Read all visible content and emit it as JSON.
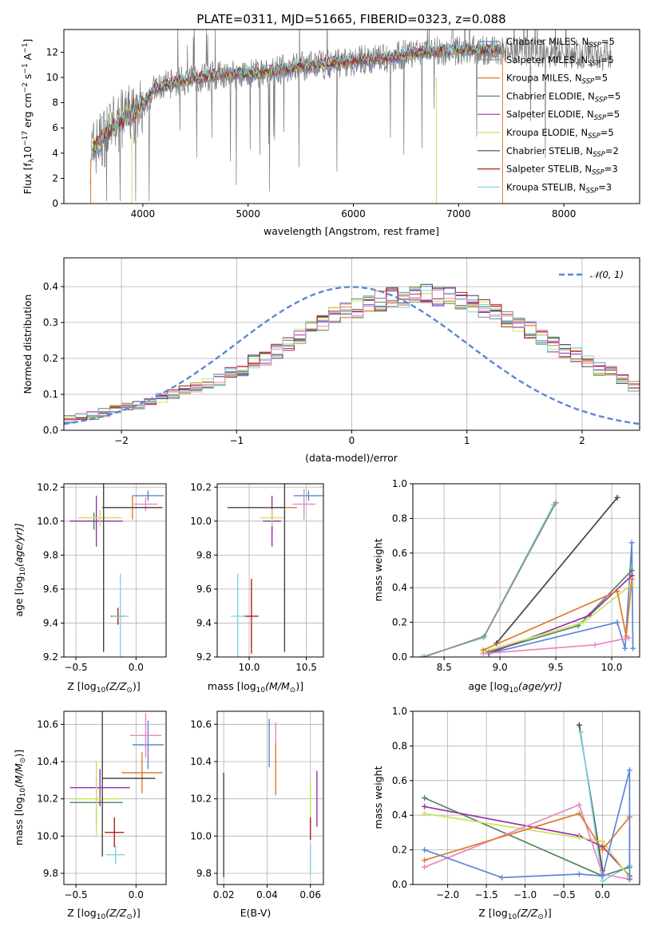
{
  "figure_title": "PLATE=0311, MJD=51665, FIBERID=0323, z=0.088",
  "colors": {
    "chabrier_miles": "#5b87d6",
    "salpeter_miles": "#8c8c8c",
    "kroupa_miles": "#e07b2a",
    "chabrier_elodie": "#4f8a5c",
    "salpeter_elodie": "#9b2fae",
    "kroupa_elodie": "#c8e65a",
    "chabrier_stelib": "#444444",
    "salpeter_stelib": "#b21e1e",
    "kroupa_stelib": "#7fd6e0",
    "pink": "#e887c2"
  },
  "chart_data": [
    {
      "id": "spectrum",
      "type": "line",
      "xlabel": "wavelength [Angstrom, rest frame]",
      "ylabel_main": "Flux [f",
      "ylabel_sub1": "λ",
      "ylabel_mid": "10",
      "ylabel_sup1": "−17",
      "ylabel_tail": " erg cm",
      "ylabel_sup2": "−2",
      "ylabel_tail2": " s",
      "ylabel_sup3": "−1",
      "ylabel_tail3": " A",
      "ylabel_sup4": "−1",
      "ylabel_close": "]",
      "xlim": [
        3250,
        8720
      ],
      "ylim": [
        0,
        13.8
      ],
      "xticks": [
        "4000",
        "5000",
        "6000",
        "7000",
        "8000"
      ],
      "yticks": [
        "0",
        "2",
        "4",
        "6",
        "8",
        "10",
        "12"
      ],
      "legend": [
        {
          "main": "Chabrier MILES, N",
          "sub": "SSP",
          "tail": "=5",
          "color": "#5b87d6"
        },
        {
          "main": "Salpeter MILES, N",
          "sub": "SSP",
          "tail": "=5",
          "color": "#8c8c8c"
        },
        {
          "main": "Kroupa MILES, N",
          "sub": "SSP",
          "tail": "=5",
          "color": "#e07b2a"
        },
        {
          "main": "Chabrier ELODIE, N",
          "sub": "SSP",
          "tail": "=5",
          "color": "#4f8a5c"
        },
        {
          "main": "Salpeter ELODIE, N",
          "sub": "SSP",
          "tail": "=5",
          "color": "#9b2fae"
        },
        {
          "main": "Kroupa ELODIE, N",
          "sub": "SSP",
          "tail": "=5",
          "color": "#c8e65a"
        },
        {
          "main": "Chabrier STELIB, N",
          "sub": "SSP",
          "tail": "=2",
          "color": "#444444"
        },
        {
          "main": "Salpeter STELIB, N",
          "sub": "SSP",
          "tail": "=3",
          "color": "#b21e1e"
        },
        {
          "main": "Kroupa STELIB, N",
          "sub": "SSP",
          "tail": "=3",
          "color": "#7fd6e0"
        }
      ],
      "continuum": [
        [
          3500,
          4.0
        ],
        [
          3700,
          6.0
        ],
        [
          3900,
          7.2
        ],
        [
          4000,
          7.8
        ],
        [
          4100,
          9.0
        ],
        [
          4300,
          9.6
        ],
        [
          4500,
          9.9
        ],
        [
          4700,
          10.2
        ],
        [
          4900,
          10.3
        ],
        [
          5100,
          10.3
        ],
        [
          5300,
          10.6
        ],
        [
          5500,
          10.9
        ],
        [
          5700,
          11.0
        ],
        [
          5900,
          11.2
        ],
        [
          6100,
          11.4
        ],
        [
          6300,
          11.5
        ],
        [
          6500,
          11.8
        ],
        [
          6700,
          12.0
        ],
        [
          6900,
          12.1
        ],
        [
          7100,
          12.2
        ],
        [
          7300,
          12.1
        ],
        [
          7420,
          12.2
        ]
      ]
    },
    {
      "id": "residuals",
      "type": "histogram",
      "xlabel": "(data-model)/error",
      "ylabel": "Normed distribution",
      "xlim": [
        -2.5,
        2.5
      ],
      "ylim": [
        0,
        0.48
      ],
      "xticks": [
        "−2",
        "−1",
        "0",
        "1",
        "2"
      ],
      "yticks": [
        "0.0",
        "0.1",
        "0.2",
        "0.3",
        "0.4"
      ],
      "legend_label": "𝒩(0, 1)",
      "bin_width": 0.1,
      "base_values": [
        0.03,
        0.04,
        0.04,
        0.05,
        0.06,
        0.07,
        0.07,
        0.08,
        0.09,
        0.1,
        0.11,
        0.12,
        0.13,
        0.14,
        0.16,
        0.17,
        0.19,
        0.2,
        0.22,
        0.24,
        0.26,
        0.28,
        0.3,
        0.32,
        0.33,
        0.34,
        0.35,
        0.36,
        0.37,
        0.37,
        0.38,
        0.38,
        0.37,
        0.37,
        0.36,
        0.35,
        0.34,
        0.33,
        0.31,
        0.3,
        0.28,
        0.26,
        0.24,
        0.22,
        0.21,
        0.19,
        0.17,
        0.16,
        0.14,
        0.12
      ]
    },
    {
      "id": "age_vs_Z",
      "type": "errorbar",
      "xlabel_pre": "Z [log",
      "xlabel_sub": "10",
      "xlabel_post": "(Z/Z",
      "xlabel_sub2": "⊙",
      "xlabel_end": ")]",
      "ylabel_pre": "age  [log",
      "ylabel_sub": "10",
      "ylabel_post": "(age/yr)]",
      "xlim": [
        -0.6,
        0.25
      ],
      "ylim": [
        9.2,
        10.22
      ],
      "xticks": [
        "−0.5",
        "0.0"
      ],
      "xtickvals": [
        -0.5,
        0.0
      ],
      "yticks": [
        "9.2",
        "9.4",
        "9.6",
        "9.8",
        "10.0",
        "10.2"
      ],
      "ytickvals": [
        9.2,
        9.4,
        9.6,
        9.8,
        10.0,
        10.2
      ],
      "points": [
        {
          "x": 0.1,
          "y": 10.15,
          "xe": 0.13,
          "ye": 0.03,
          "c": "#5b87d6"
        },
        {
          "x": 0.08,
          "y": 10.1,
          "xe": 0.1,
          "ye": 0.04,
          "c": "#e887c2"
        },
        {
          "x": -0.03,
          "y": 10.08,
          "xe": 0.25,
          "ye": 0.07,
          "c": "#e07b2a"
        },
        {
          "x": -0.35,
          "y": 10.0,
          "xe": 0.2,
          "ye": 0.05,
          "c": "#4f8a5c"
        },
        {
          "x": -0.33,
          "y": 10.0,
          "xe": 0.22,
          "ye": 0.15,
          "c": "#9b2fae"
        },
        {
          "x": -0.3,
          "y": 10.02,
          "xe": 0.18,
          "ye": 0.05,
          "c": "#c8e65a"
        },
        {
          "x": -0.03,
          "y": 10.08,
          "xe": 0.25,
          "ye": 0.0,
          "c": "#444444"
        },
        {
          "x": -0.27,
          "y": 10.08,
          "xe": 0.0,
          "ye": 0.85,
          "c": "#444444"
        },
        {
          "x": -0.15,
          "y": 9.44,
          "xe": 0.06,
          "ye": 0.05,
          "c": "#b21e1e"
        },
        {
          "x": -0.13,
          "y": 9.44,
          "xe": 0.07,
          "ye": 0.25,
          "c": "#7fd6e0"
        }
      ]
    },
    {
      "id": "age_vs_mass",
      "type": "errorbar",
      "xlabel_pre": "mass [log",
      "xlabel_sub": "10",
      "xlabel_post": "(M/M",
      "xlabel_sub2": "⊙",
      "xlabel_end": ")]",
      "xlim": [
        9.72,
        10.65
      ],
      "ylim": [
        9.2,
        10.22
      ],
      "xticks": [
        "10.0",
        "10.5"
      ],
      "xtickvals": [
        10.0,
        10.5
      ],
      "yticks": [
        "9.2",
        "9.4",
        "9.6",
        "9.8",
        "10.0",
        "10.2"
      ],
      "ytickvals": [
        9.2,
        9.4,
        9.6,
        9.8,
        10.0,
        10.2
      ],
      "points": [
        {
          "x": 10.52,
          "y": 10.15,
          "xe": 0.13,
          "ye": 0.03,
          "c": "#5b87d6"
        },
        {
          "x": 10.48,
          "y": 10.1,
          "xe": 0.1,
          "ye": 0.09,
          "c": "#e887c2"
        },
        {
          "x": 10.32,
          "y": 10.08,
          "xe": 0.1,
          "ye": 0.0,
          "c": "#e07b2a"
        },
        {
          "x": 10.2,
          "y": 10.0,
          "xe": 0.06,
          "ye": 0.06,
          "c": "#4f8a5c"
        },
        {
          "x": 10.2,
          "y": 10.0,
          "xe": 0.08,
          "ye": 0.15,
          "c": "#9b2fae"
        },
        {
          "x": 10.2,
          "y": 10.02,
          "xe": 0.1,
          "ye": 0.05,
          "c": "#c8e65a"
        },
        {
          "x": 10.06,
          "y": 10.08,
          "xe": 0.25,
          "ye": 0.0,
          "c": "#444444"
        },
        {
          "x": 10.31,
          "y": 10.08,
          "xe": 0.0,
          "ye": 0.85,
          "c": "#444444"
        },
        {
          "x": 10.02,
          "y": 9.44,
          "xe": 0.06,
          "ye": 0.22,
          "c": "#b21e1e"
        },
        {
          "x": 9.9,
          "y": 9.44,
          "xe": 0.06,
          "ye": 0.25,
          "c": "#7fd6e0"
        }
      ]
    },
    {
      "id": "mass_weight_vs_age",
      "type": "line",
      "xlabel_pre": "age  [log",
      "xlabel_sub": "10",
      "xlabel_post": "(age/yr)]",
      "ylabel": "mass weight",
      "xlim": [
        8.22,
        10.25
      ],
      "ylim": [
        0,
        1.0
      ],
      "xticks": [
        "8.5",
        "9.0",
        "9.5",
        "10.0"
      ],
      "xtickvals": [
        8.5,
        9.0,
        9.5,
        10.0
      ],
      "yticks": [
        "0.0",
        "0.2",
        "0.4",
        "0.6",
        "0.8",
        "1.0"
      ],
      "ytickvals": [
        0,
        0.2,
        0.4,
        0.6,
        0.8,
        1.0
      ],
      "series": [
        {
          "c": "#7fd6e0",
          "pts": [
            [
              8.3,
              0.0
            ],
            [
              8.85,
              0.11
            ],
            [
              9.48,
              0.88
            ]
          ]
        },
        {
          "c": "#8c8c8c",
          "pts": [
            [
              8.32,
              0.0
            ],
            [
              8.86,
              0.12
            ],
            [
              9.5,
              0.89
            ]
          ]
        },
        {
          "c": "#444444",
          "pts": [
            [
              8.97,
              0.08
            ],
            [
              10.05,
              0.92
            ]
          ]
        },
        {
          "c": "#5b87d6",
          "pts": [
            [
              8.9,
              0.02
            ],
            [
              10.05,
              0.2
            ],
            [
              10.12,
              0.05
            ],
            [
              10.18,
              0.66
            ],
            [
              10.19,
              0.05
            ]
          ]
        },
        {
          "c": "#4f8a5c",
          "pts": [
            [
              8.9,
              0.03
            ],
            [
              9.7,
              0.18
            ],
            [
              10.18,
              0.5
            ]
          ]
        },
        {
          "c": "#9b2fae",
          "pts": [
            [
              8.9,
              0.02
            ],
            [
              9.8,
              0.24
            ],
            [
              10.18,
              0.47
            ]
          ]
        },
        {
          "c": "#c8e65a",
          "pts": [
            [
              8.85,
              0.03
            ],
            [
              9.75,
              0.2
            ],
            [
              10.18,
              0.42
            ]
          ]
        },
        {
          "c": "#e07b2a",
          "pts": [
            [
              8.85,
              0.04
            ],
            [
              10.05,
              0.38
            ],
            [
              10.13,
              0.12
            ],
            [
              10.18,
              0.45
            ]
          ]
        },
        {
          "c": "#e887c2",
          "pts": [
            [
              8.85,
              0.02
            ],
            [
              9.85,
              0.07
            ],
            [
              10.15,
              0.11
            ]
          ]
        }
      ]
    },
    {
      "id": "mass_vs_Z",
      "type": "errorbar",
      "xlabel_pre": "Z [log",
      "xlabel_sub": "10",
      "xlabel_post": "(Z/Z",
      "xlabel_sub2": "⊙",
      "xlabel_end": ")]",
      "ylabel_pre": "mass [log",
      "ylabel_sub": "10",
      "ylabel_post": "(M/M",
      "ylabel_sub2": "⊙",
      "ylabel_end": ")]",
      "xlim": [
        -0.6,
        0.25
      ],
      "ylim": [
        9.74,
        10.67
      ],
      "xticks": [
        "−0.5",
        "0.0"
      ],
      "xtickvals": [
        -0.5,
        0.0
      ],
      "yticks": [
        "9.8",
        "10.0",
        "10.2",
        "10.4",
        "10.6"
      ],
      "ytickvals": [
        9.8,
        10.0,
        10.2,
        10.4,
        10.6
      ],
      "points": [
        {
          "x": 0.1,
          "y": 10.49,
          "xe": 0.13,
          "ye": 0.13,
          "c": "#5b87d6"
        },
        {
          "x": 0.08,
          "y": 10.54,
          "xe": 0.13,
          "ye": 0.12,
          "c": "#e887c2"
        },
        {
          "x": 0.05,
          "y": 10.34,
          "xe": 0.17,
          "ye": 0.11,
          "c": "#e07b2a"
        },
        {
          "x": -0.33,
          "y": 10.18,
          "xe": 0.22,
          "ye": 0.13,
          "c": "#4f8a5c"
        },
        {
          "x": -0.3,
          "y": 10.26,
          "xe": 0.25,
          "ye": 0.1,
          "c": "#9b2fae"
        },
        {
          "x": -0.33,
          "y": 10.2,
          "xe": 0.2,
          "ye": 0.2,
          "c": "#c8e65a"
        },
        {
          "x": -0.06,
          "y": 10.31,
          "xe": 0.22,
          "ye": 0.0,
          "c": "#444444"
        },
        {
          "x": -0.28,
          "y": 10.31,
          "xe": 0.0,
          "ye": 0.42,
          "c": "#444444"
        },
        {
          "x": -0.18,
          "y": 10.02,
          "xe": 0.08,
          "ye": 0.08,
          "c": "#b21e1e"
        },
        {
          "x": -0.17,
          "y": 9.9,
          "xe": 0.08,
          "ye": 0.05,
          "c": "#7fd6e0"
        }
      ]
    },
    {
      "id": "mass_vs_ebv",
      "type": "errorbar",
      "xlabel": "E(B-V)",
      "xlim": [
        0.017,
        0.066
      ],
      "ylim": [
        9.74,
        10.67
      ],
      "xticks": [
        "0.02",
        "0.04",
        "0.06"
      ],
      "xtickvals": [
        0.02,
        0.04,
        0.06
      ],
      "yticks": [
        "9.8",
        "10.0",
        "10.2",
        "10.4",
        "10.6"
      ],
      "ytickvals": [
        9.8,
        10.0,
        10.2,
        10.4,
        10.6
      ],
      "points": [
        {
          "x": 0.041,
          "y": 10.5,
          "xe": 0,
          "ye": 0.13,
          "c": "#5b87d6"
        },
        {
          "x": 0.044,
          "y": 10.5,
          "xe": 0,
          "ye": 0.11,
          "c": "#e887c2"
        },
        {
          "x": 0.044,
          "y": 10.36,
          "xe": 0,
          "ye": 0.14,
          "c": "#e07b2a"
        },
        {
          "x": 0.06,
          "y": 10.17,
          "xe": 0,
          "ye": 0.13,
          "c": "#c8e65a"
        },
        {
          "x": 0.063,
          "y": 10.2,
          "xe": 0,
          "ye": 0.15,
          "c": "#9b2fae"
        },
        {
          "x": 0.02,
          "y": 10.06,
          "xe": 0,
          "ye": 0.28,
          "c": "#444444"
        },
        {
          "x": 0.06,
          "y": 10.04,
          "xe": 0,
          "ye": 0.06,
          "c": "#b21e1e"
        },
        {
          "x": 0.06,
          "y": 9.88,
          "xe": 0,
          "ye": 0.08,
          "c": "#7fd6e0"
        }
      ]
    },
    {
      "id": "mass_weight_vs_Z",
      "type": "line",
      "xlabel_pre": "Z [log",
      "xlabel_sub": "10",
      "xlabel_post": "(Z/Z",
      "xlabel_sub2": "⊙",
      "xlabel_end": ")]",
      "ylabel": "mass weight",
      "xlim": [
        -2.45,
        0.48
      ],
      "ylim": [
        0,
        1.0
      ],
      "xticks": [
        "−2.0",
        "−1.5",
        "−1.0",
        "−0.5",
        "0.0"
      ],
      "xtickvals": [
        -2.0,
        -1.5,
        -1.0,
        -0.5,
        0.0
      ],
      "yticks": [
        "0.0",
        "0.2",
        "0.4",
        "0.6",
        "0.8",
        "1.0"
      ],
      "ytickvals": [
        0,
        0.2,
        0.4,
        0.6,
        0.8,
        1.0
      ],
      "series": [
        {
          "c": "#444444",
          "pts": [
            [
              -0.3,
              0.92
            ],
            [
              0.0,
              0.08
            ]
          ]
        },
        {
          "c": "#7fd6e0",
          "pts": [
            [
              -0.28,
              0.88
            ],
            [
              0.0,
              0.02
            ],
            [
              0.35,
              0.11
            ]
          ]
        },
        {
          "c": "#4f8a5c",
          "pts": [
            [
              -2.3,
              0.5
            ],
            [
              0.0,
              0.05
            ],
            [
              0.35,
              0.1
            ]
          ]
        },
        {
          "c": "#9b2fae",
          "pts": [
            [
              -2.3,
              0.45
            ],
            [
              -0.3,
              0.28
            ],
            [
              0.0,
              0.22
            ],
            [
              0.35,
              0.05
            ]
          ]
        },
        {
          "c": "#c8e65a",
          "pts": [
            [
              -2.3,
              0.41
            ],
            [
              -0.3,
              0.27
            ],
            [
              0.0,
              0.25
            ],
            [
              0.35,
              0.04
            ]
          ]
        },
        {
          "c": "#e887c2",
          "pts": [
            [
              -2.3,
              0.1
            ],
            [
              -0.3,
              0.46
            ],
            [
              0.0,
              0.06
            ],
            [
              0.35,
              0.03
            ]
          ]
        },
        {
          "c": "#e07b2a",
          "pts": [
            [
              -2.3,
              0.14
            ],
            [
              -0.3,
              0.41
            ],
            [
              0.0,
              0.2
            ],
            [
              0.35,
              0.39
            ],
            [
              0.35,
              0.03
            ]
          ]
        },
        {
          "c": "#5b87d6",
          "pts": [
            [
              -2.3,
              0.2
            ],
            [
              -1.3,
              0.04
            ],
            [
              -0.3,
              0.06
            ],
            [
              0.0,
              0.05
            ],
            [
              0.35,
              0.66
            ],
            [
              0.35,
              0.03
            ]
          ]
        }
      ]
    }
  ]
}
